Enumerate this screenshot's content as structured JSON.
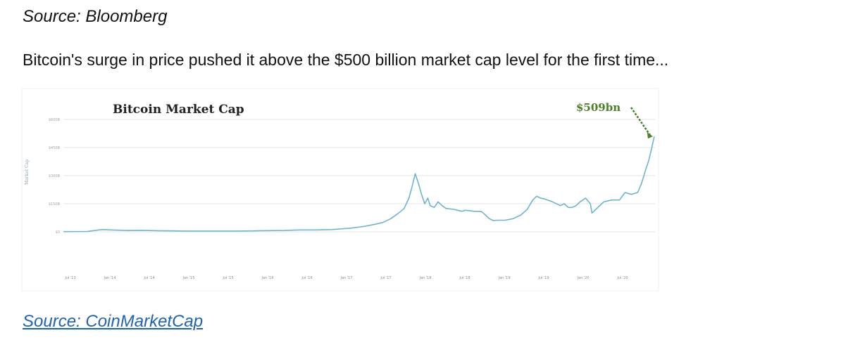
{
  "header": {
    "source_label": "Source: Bloomberg",
    "intro_text": "Bitcoin's surge in price pushed it above the $500 billion market cap level for the first time..."
  },
  "footer": {
    "source_link": "Source: CoinMarketCap"
  },
  "colors": {
    "line": "#6db3d3",
    "annotation": "#4c7f26",
    "grid": "#e6e6e6",
    "link": "#1f63b6"
  },
  "chart_data": {
    "type": "line",
    "title": "Bitcoin Market Cap",
    "ylabel": "Market Cap",
    "ylim": [
      0,
      600
    ],
    "grid": true,
    "yticks": [
      {
        "value": 0,
        "label": "$0"
      },
      {
        "value": 150,
        "label": "$150B"
      },
      {
        "value": 300,
        "label": "$300B"
      },
      {
        "value": 450,
        "label": "$450B"
      },
      {
        "value": 600,
        "label": "$600B"
      }
    ],
    "xticks": [
      "Jul '13",
      "Jan '14",
      "Jul '14",
      "Jan '15",
      "Jul '15",
      "Jan '16",
      "Jul '16",
      "Jan '17",
      "Jul '17",
      "Jan '18",
      "Jul '18",
      "Jan '19",
      "Jul '19",
      "Jan '20",
      "Jul '20"
    ],
    "annotation": {
      "label": "$509bn",
      "value": 509
    },
    "series": [
      {
        "values": [
          [
            2013.5,
            1
          ],
          [
            2013.8,
            2
          ],
          [
            2013.95,
            10
          ],
          [
            2014.0,
            12
          ],
          [
            2014.1,
            10
          ],
          [
            2014.3,
            7
          ],
          [
            2014.5,
            8
          ],
          [
            2014.7,
            6
          ],
          [
            2014.9,
            5
          ],
          [
            2015.0,
            4
          ],
          [
            2015.3,
            4
          ],
          [
            2015.5,
            4
          ],
          [
            2015.7,
            4
          ],
          [
            2015.9,
            5
          ],
          [
            2016.0,
            6
          ],
          [
            2016.3,
            7
          ],
          [
            2016.5,
            10
          ],
          [
            2016.7,
            10
          ],
          [
            2016.9,
            12
          ],
          [
            2017.0,
            15
          ],
          [
            2017.15,
            20
          ],
          [
            2017.3,
            28
          ],
          [
            2017.45,
            40
          ],
          [
            2017.55,
            50
          ],
          [
            2017.65,
            70
          ],
          [
            2017.75,
            100
          ],
          [
            2017.82,
            125
          ],
          [
            2017.88,
            180
          ],
          [
            2017.92,
            240
          ],
          [
            2017.96,
            310
          ],
          [
            2018.0,
            260
          ],
          [
            2018.04,
            200
          ],
          [
            2018.08,
            150
          ],
          [
            2018.12,
            180
          ],
          [
            2018.15,
            140
          ],
          [
            2018.2,
            130
          ],
          [
            2018.25,
            160
          ],
          [
            2018.3,
            140
          ],
          [
            2018.35,
            125
          ],
          [
            2018.45,
            120
          ],
          [
            2018.55,
            110
          ],
          [
            2018.6,
            115
          ],
          [
            2018.7,
            110
          ],
          [
            2018.8,
            108
          ],
          [
            2018.85,
            90
          ],
          [
            2018.9,
            70
          ],
          [
            2018.95,
            60
          ],
          [
            2019.0,
            62
          ],
          [
            2019.1,
            62
          ],
          [
            2019.2,
            70
          ],
          [
            2019.3,
            90
          ],
          [
            2019.38,
            120
          ],
          [
            2019.45,
            170
          ],
          [
            2019.5,
            190
          ],
          [
            2019.55,
            180
          ],
          [
            2019.6,
            175
          ],
          [
            2019.7,
            160
          ],
          [
            2019.8,
            140
          ],
          [
            2019.85,
            150
          ],
          [
            2019.9,
            130
          ],
          [
            2019.95,
            130
          ],
          [
            2020.0,
            140
          ],
          [
            2020.05,
            160
          ],
          [
            2020.12,
            180
          ],
          [
            2020.18,
            150
          ],
          [
            2020.2,
            100
          ],
          [
            2020.25,
            120
          ],
          [
            2020.35,
            160
          ],
          [
            2020.45,
            170
          ],
          [
            2020.55,
            170
          ],
          [
            2020.62,
            210
          ],
          [
            2020.7,
            200
          ],
          [
            2020.78,
            210
          ],
          [
            2020.83,
            260
          ],
          [
            2020.88,
            330
          ],
          [
            2020.92,
            380
          ],
          [
            2020.96,
            450
          ],
          [
            2020.99,
            509
          ]
        ]
      }
    ]
  }
}
